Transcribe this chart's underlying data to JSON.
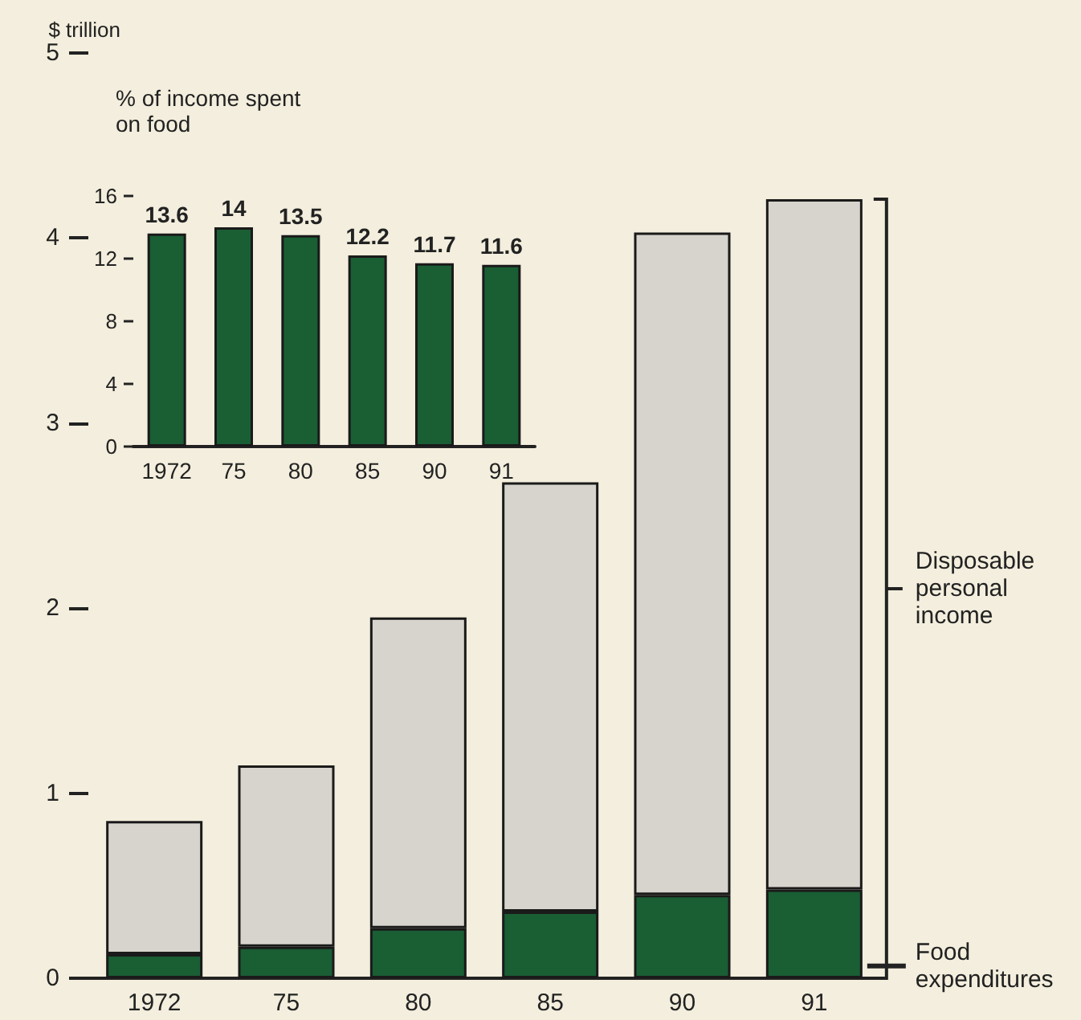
{
  "chart_data": [
    {
      "type": "bar",
      "stacked": true,
      "ylabel": "$ trillion",
      "categories": [
        "1972",
        "75",
        "80",
        "85",
        "90",
        "91"
      ],
      "ylim": [
        0,
        5
      ],
      "yticks": [
        0,
        1,
        2,
        3,
        4,
        5
      ],
      "grid": false,
      "legend": "right",
      "series": [
        {
          "name": "Food expenditures",
          "color": "#1a5e34",
          "values": [
            0.13,
            0.17,
            0.27,
            0.36,
            0.45,
            0.48
          ]
        },
        {
          "name": "Disposable personal income",
          "color": "#d6d4cc",
          "values": [
            0.72,
            0.98,
            1.68,
            2.32,
            3.58,
            3.73
          ]
        }
      ]
    },
    {
      "type": "bar",
      "title": "% of income spent on food",
      "categories": [
        "1972",
        "75",
        "80",
        "85",
        "90",
        "91"
      ],
      "values": [
        13.6,
        14,
        13.5,
        12.2,
        11.7,
        11.6
      ],
      "color": "#1a5e34",
      "ylim": [
        0,
        16
      ],
      "yticks": [
        0,
        4,
        8,
        12,
        16
      ],
      "data_labels": true,
      "grid": false
    }
  ]
}
